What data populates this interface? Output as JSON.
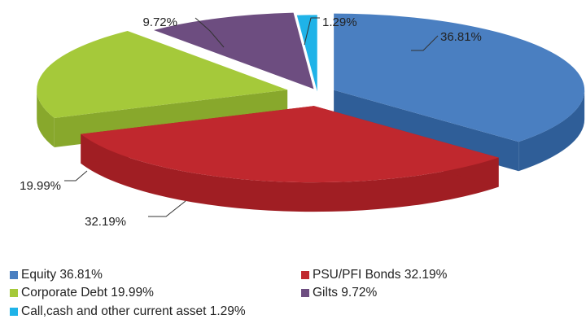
{
  "chart_data": {
    "type": "pie",
    "title": "",
    "style": "3d-exploded-pie",
    "categories": [
      "Equity",
      "PSU/PFI Bonds",
      "Corporate Debt",
      "Gilts",
      "Call,cash and other current asset"
    ],
    "values": [
      36.81,
      32.19,
      19.99,
      9.72,
      1.29
    ],
    "data_labels": [
      "36.81%",
      "32.19%",
      "19.99%",
      "9.72%",
      "1.29%"
    ],
    "colors": [
      "#4a7fc1",
      "#c0282e",
      "#a5c93a",
      "#6d4d80",
      "#1fb3e8"
    ],
    "side_colors": [
      "#2f5e98",
      "#a01e23",
      "#88a82c",
      "#56396a",
      "#1390bd"
    ],
    "legend": {
      "position": "bottom",
      "entries": [
        "Equity  36.81%",
        "PSU/PFI Bonds 32.19%",
        "Corporate Debt  19.99%",
        "Gilts  9.72%",
        "Call,cash and other current asset  1.29%"
      ]
    }
  }
}
